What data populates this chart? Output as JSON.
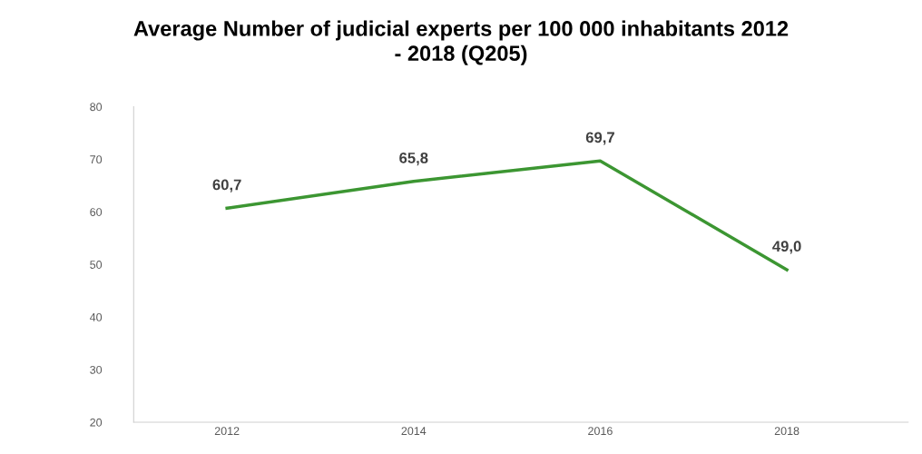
{
  "chart_data": {
    "type": "line",
    "title": "Average Number of judicial experts per 100 000 inhabitants 2012\n- 2018 (Q205)",
    "categories": [
      "2012",
      "2014",
      "2016",
      "2018"
    ],
    "series": [
      {
        "color": "#3c9632",
        "values": [
          60.7,
          65.8,
          69.7,
          49.0
        ],
        "value_labels": [
          "60,7",
          "65,8",
          "69,7",
          "49,0"
        ]
      }
    ],
    "ylim": [
      20,
      80
    ],
    "yticks": [
      20,
      30,
      40,
      50,
      60,
      70,
      80
    ],
    "grid": false,
    "legend": false,
    "marker": "none",
    "line_style": "solid"
  }
}
